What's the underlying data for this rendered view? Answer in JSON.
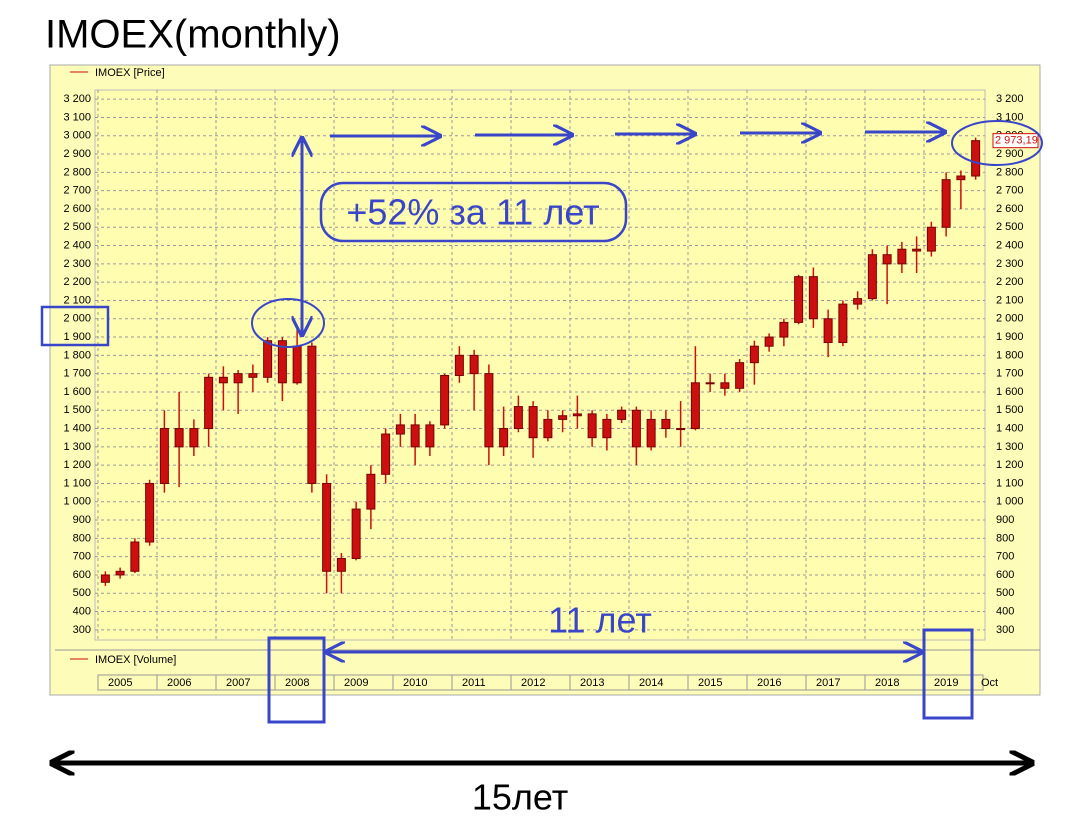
{
  "chart_data": {
    "type": "candlestick",
    "title": "IMOEX(monthly)",
    "price_legend": "IMOEX [Price]",
    "volume_legend": "IMOEX [Volume]",
    "color": "#cc1010",
    "grid": true,
    "x": [
      2005,
      2005.25,
      2005.5,
      2005.75,
      2006,
      2006.25,
      2006.5,
      2006.75,
      2007,
      2007.25,
      2007.5,
      2007.75,
      2008,
      2008.25,
      2008.5,
      2008.75,
      2009,
      2009.25,
      2009.5,
      2009.75,
      2010,
      2010.25,
      2010.5,
      2010.75,
      2011,
      2011.25,
      2011.5,
      2011.75,
      2012,
      2012.25,
      2012.5,
      2012.75,
      2013,
      2013.25,
      2013.5,
      2013.75,
      2014,
      2014.25,
      2014.5,
      2014.75,
      2015,
      2015.25,
      2015.5,
      2015.75,
      2016,
      2016.25,
      2016.5,
      2016.75,
      2017,
      2017.25,
      2017.5,
      2017.75,
      2018,
      2018.25,
      2018.5,
      2018.75,
      2019,
      2019.25,
      2019.5,
      2019.75
    ],
    "open": [
      560,
      600,
      620,
      780,
      1100,
      1400,
      1300,
      1400,
      1680,
      1650,
      1700,
      1680,
      1880,
      1650,
      1850,
      1100,
      620,
      690,
      960,
      1150,
      1370,
      1420,
      1300,
      1420,
      1690,
      1800,
      1700,
      1300,
      1400,
      1520,
      1350,
      1450,
      1470,
      1480,
      1350,
      1450,
      1500,
      1300,
      1450,
      1400,
      1400,
      1650,
      1650,
      1620,
      1760,
      1850,
      1900,
      1980,
      2230,
      2000,
      1870,
      2080,
      2110,
      2350,
      2300,
      2380,
      2370,
      2500,
      2760,
      2780
    ],
    "high": [
      620,
      640,
      800,
      1120,
      1500,
      1600,
      1450,
      1700,
      1740,
      1720,
      1750,
      1900,
      1900,
      1960,
      1870,
      1150,
      720,
      1000,
      1200,
      1400,
      1480,
      1480,
      1440,
      1700,
      1850,
      1830,
      1750,
      1520,
      1580,
      1550,
      1500,
      1500,
      1580,
      1500,
      1480,
      1520,
      1520,
      1500,
      1500,
      1550,
      1850,
      1700,
      1700,
      1780,
      1880,
      1920,
      2000,
      2240,
      2280,
      2050,
      2100,
      2150,
      2380,
      2400,
      2420,
      2450,
      2530,
      2800,
      2810,
      2990
    ],
    "low": [
      540,
      580,
      610,
      760,
      1050,
      1080,
      1250,
      1300,
      1500,
      1480,
      1600,
      1650,
      1550,
      1640,
      1050,
      500,
      500,
      680,
      850,
      1100,
      1300,
      1200,
      1250,
      1400,
      1650,
      1500,
      1200,
      1250,
      1380,
      1240,
      1330,
      1380,
      1400,
      1300,
      1280,
      1430,
      1200,
      1280,
      1350,
      1300,
      1390,
      1600,
      1580,
      1600,
      1640,
      1820,
      1850,
      1970,
      1950,
      1790,
      1850,
      2050,
      2100,
      2080,
      2250,
      2250,
      2340,
      2450,
      2600,
      2760
    ],
    "close": [
      600,
      620,
      780,
      1100,
      1400,
      1300,
      1400,
      1680,
      1650,
      1700,
      1680,
      1880,
      1650,
      1850,
      1100,
      620,
      690,
      960,
      1150,
      1370,
      1420,
      1300,
      1420,
      1690,
      1800,
      1700,
      1300,
      1400,
      1520,
      1350,
      1450,
      1470,
      1480,
      1350,
      1450,
      1500,
      1300,
      1450,
      1400,
      1400,
      1650,
      1650,
      1620,
      1760,
      1850,
      1900,
      1980,
      2230,
      2000,
      1870,
      2080,
      2110,
      2350,
      2300,
      2380,
      2370,
      2500,
      2760,
      2780,
      2973.19
    ],
    "last_value_label": "2 973,19",
    "xlim": [
      2005,
      2020
    ],
    "xticks": [
      2005,
      2006,
      2007,
      2008,
      2009,
      2010,
      2011,
      2012,
      2013,
      2014,
      2015,
      2016,
      2017,
      2018,
      2019
    ],
    "x_end_label": "Oct",
    "ylim": [
      250,
      3250
    ],
    "yticks": [
      300,
      400,
      500,
      600,
      700,
      800,
      900,
      {
        "value": 1000,
        "label": "1 000"
      },
      {
        "value": 1100,
        "label": "1 100"
      },
      {
        "value": 1200,
        "label": "1 200"
      },
      {
        "value": 1300,
        "label": "1 300"
      },
      {
        "value": 1400,
        "label": "1 400"
      },
      {
        "value": 1500,
        "label": "1 500"
      },
      {
        "value": 1600,
        "label": "1 600"
      },
      {
        "value": 1700,
        "label": "1 700"
      },
      {
        "value": 1800,
        "label": "1 800"
      },
      {
        "value": 1900,
        "label": "1 900"
      },
      {
        "value": 2000,
        "label": "2 000"
      },
      {
        "value": 2100,
        "label": "2 100"
      },
      {
        "value": 2200,
        "label": "2 200"
      },
      {
        "value": 2300,
        "label": "2 300"
      },
      {
        "value": 2400,
        "label": "2 400"
      },
      {
        "value": 2500,
        "label": "2 500"
      },
      {
        "value": 2600,
        "label": "2 600"
      },
      {
        "value": 2700,
        "label": "2 700"
      },
      {
        "value": 2800,
        "label": "2 800"
      },
      {
        "value": 2900,
        "label": "2 900"
      },
      {
        "value": 3000,
        "label": "3 000"
      },
      {
        "value": 3100,
        "label": "3 100"
      },
      {
        "value": 3200,
        "label": "3 200"
      }
    ],
    "annotations": [
      "+52% за 11 лет",
      "11 лет",
      "15лет"
    ]
  }
}
